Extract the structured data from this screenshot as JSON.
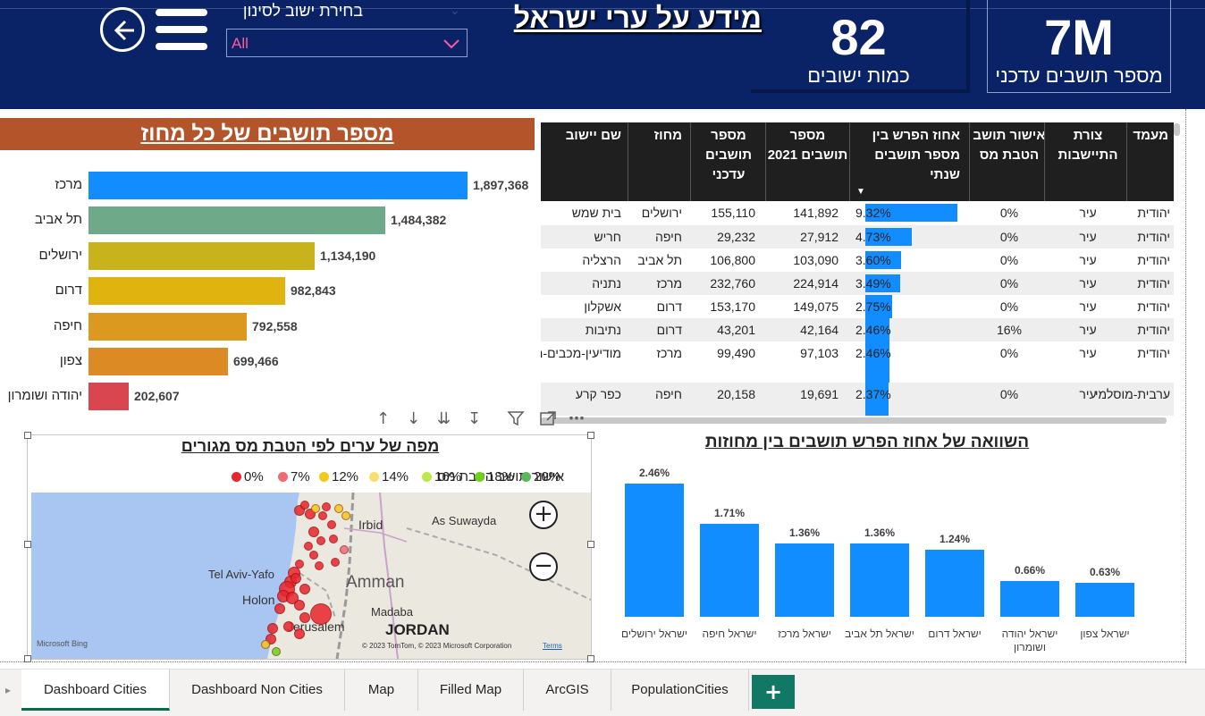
{
  "header": {
    "title": "מידע על ערי ישראל",
    "filter_label": "בחירת ישוב לסינון",
    "filter_value": "All",
    "kpi_settlements": {
      "value": "82",
      "label": "כמות ישובים"
    },
    "kpi_population": {
      "value": "7M",
      "label": "מספר תושבים עדכני"
    }
  },
  "district_chart": {
    "title": "מספר תושבים של כל מחוז",
    "chart_data": {
      "type": "bar",
      "orientation": "horizontal",
      "title": "מספר תושבים של כל מחוז",
      "categories": [
        "מרכז",
        "תל אביב",
        "ירושלים",
        "דרום",
        "חיפה",
        "צפון",
        "יהודה ושומרון"
      ],
      "values": [
        1897368,
        1484382,
        1134190,
        982843,
        792558,
        699466,
        202607
      ],
      "labels": [
        "1,897,368",
        "1,484,382",
        "1,134,190",
        "982,843",
        "792,558",
        "699,466",
        "202,607"
      ],
      "colors": [
        "#118dff",
        "#6ea98a",
        "#c9b31c",
        "#e0b30f",
        "#dc9920",
        "#dc8a24",
        "#d94650"
      ],
      "xlim": [
        0,
        1897368
      ]
    }
  },
  "table": {
    "columns": [
      "שם יישוב",
      "מחוז",
      "מספר תושבים עדכני",
      "מספר תושבים 2021",
      "אחוז הפרש בין מספר תושבים שנתי",
      "אישור תושב הטבת מס",
      "צורת התיישבות",
      "מעמד"
    ],
    "rows": [
      {
        "name": "בית שמש",
        "district": "ירושלים",
        "current": "155,110",
        "y2021": "141,892",
        "pct": "9.32%",
        "pct_value": 9.32,
        "tax": "0%",
        "form": "עיר",
        "status": "יהודית"
      },
      {
        "name": "חריש",
        "district": "חיפה",
        "current": "29,232",
        "y2021": "27,912",
        "pct": "4.73%",
        "pct_value": 4.73,
        "tax": "0%",
        "form": "עיר",
        "status": "יהודית"
      },
      {
        "name": "הרצליה",
        "district": "תל אביב",
        "current": "106,800",
        "y2021": "103,090",
        "pct": "3.60%",
        "pct_value": 3.6,
        "tax": "0%",
        "form": "עיר",
        "status": "יהודית"
      },
      {
        "name": "נתניה",
        "district": "מרכז",
        "current": "232,760",
        "y2021": "224,914",
        "pct": "3.49%",
        "pct_value": 3.49,
        "tax": "0%",
        "form": "עיר",
        "status": "יהודית"
      },
      {
        "name": "אשקלון",
        "district": "דרום",
        "current": "153,170",
        "y2021": "149,075",
        "pct": "2.75%",
        "pct_value": 2.75,
        "tax": "0%",
        "form": "עיר",
        "status": "יהודית"
      },
      {
        "name": "נתיבות",
        "district": "דרום",
        "current": "43,201",
        "y2021": "42,164",
        "pct": "2.46%",
        "pct_value": 2.46,
        "tax": "16%",
        "form": "עיר",
        "status": "יהודית"
      },
      {
        "name": "מודיעין-מכבים-רעות",
        "district": "מרכז",
        "current": "99,490",
        "y2021": "97,103",
        "pct": "2.46%",
        "pct_value": 2.46,
        "tax": "0%",
        "form": "עיר",
        "status": "יהודית"
      },
      {
        "name": "כפר קרע",
        "district": "חיפה",
        "current": "20,158",
        "y2021": "19,691",
        "pct": "2.37%",
        "pct_value": 2.37,
        "tax": "0%",
        "form": "עיר",
        "status": "ערבית-מוסלמי"
      }
    ]
  },
  "map": {
    "title": "מפה של ערים לפי הטבת מס מגורים",
    "legend_title": "אישור תושב הטבת מס",
    "legend": [
      {
        "label": "0%",
        "color": "#e8262d"
      },
      {
        "label": "7%",
        "color": "#f06a74"
      },
      {
        "label": "12%",
        "color": "#f2c81a"
      },
      {
        "label": "14%",
        "color": "#f5df70"
      },
      {
        "label": "16%",
        "color": "#bde84b"
      },
      {
        "label": "18%",
        "color": "#6fd11b"
      },
      {
        "label": "20%",
        "color": "#5cb85c"
      }
    ],
    "places": [
      "Irbid",
      "As Suwayda",
      "Tel Aviv-Yafo",
      "Holon",
      "Amman",
      "Jerusalem",
      "Madaba",
      "JORDAN"
    ],
    "copyright": "© 2023 TomTom, © 2023 Microsoft Corporation",
    "terms": "Terms",
    "brand": "Microsoft Bing",
    "zoom_in": "+",
    "zoom_out": "−"
  },
  "compare_chart": {
    "title": "השוואה של אחוז הפרש תושבים בין מחוזות",
    "chart_data": {
      "type": "bar",
      "title": "השוואה של אחוז הפרש תושבים בין מחוזות",
      "categories": [
        "ישראל ירושלים",
        "ישראל חיפה",
        "ישראל מרכז",
        "ישראל תל אביב",
        "ישראל דרום",
        "ישראל יהודה ושומרון",
        "ישראל צפון"
      ],
      "values": [
        2.46,
        1.71,
        1.36,
        1.36,
        1.24,
        0.66,
        0.63
      ],
      "labels": [
        "2.46%",
        "1.71%",
        "1.36%",
        "1.36%",
        "1.24%",
        "0.66%",
        "0.63%"
      ],
      "ylim": [
        0,
        2.46
      ],
      "color": "#118dff"
    }
  },
  "tabs": [
    "Dashboard Cities",
    "Dashboard Non Cities",
    "Map",
    "Filled Map",
    "ArcGIS",
    "PopulationCities"
  ],
  "tab_add": "+"
}
